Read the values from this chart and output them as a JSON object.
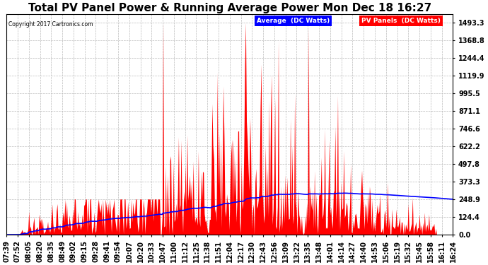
{
  "title": "Total PV Panel Power & Running Average Power Mon Dec 18 16:27",
  "copyright": "Copyright 2017 Cartronics.com",
  "legend_avg": "Average  (DC Watts)",
  "legend_pv": "PV Panels  (DC Watts)",
  "ylabel_values": [
    0.0,
    124.4,
    248.9,
    373.3,
    497.8,
    622.2,
    746.6,
    871.1,
    995.5,
    1119.9,
    1244.4,
    1368.8,
    1493.3
  ],
  "ylim": [
    0,
    1550
  ],
  "bg_color": "#ffffff",
  "plot_bg": "#ffffff",
  "grid_color": "#bbbbbb",
  "pv_color": "#ff0000",
  "avg_color": "#0000ff",
  "title_fontsize": 11,
  "tick_fontsize": 7,
  "x_labels": [
    "07:39",
    "07:52",
    "08:05",
    "08:20",
    "08:35",
    "08:49",
    "09:02",
    "09:15",
    "09:28",
    "09:41",
    "09:54",
    "10:07",
    "10:20",
    "10:33",
    "10:47",
    "11:00",
    "11:12",
    "11:25",
    "11:38",
    "11:51",
    "12:04",
    "12:17",
    "12:30",
    "12:43",
    "12:56",
    "13:09",
    "13:22",
    "13:35",
    "13:48",
    "14:01",
    "14:14",
    "14:27",
    "14:40",
    "14:53",
    "15:06",
    "15:19",
    "15:32",
    "15:45",
    "15:58",
    "16:11",
    "16:24"
  ],
  "n_points": 520
}
